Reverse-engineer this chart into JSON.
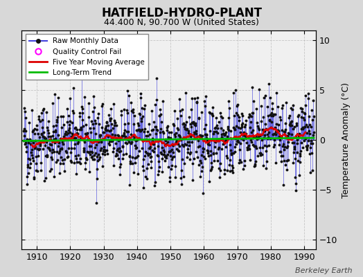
{
  "title": "HATFIELD-HYDRO-PLANT",
  "subtitle": "44.400 N, 90.700 W (United States)",
  "ylabel": "Temperature Anomaly (°C)",
  "watermark": "Berkeley Earth",
  "year_start": 1906,
  "year_end": 1993,
  "ylim": [
    -11,
    11
  ],
  "yticks": [
    -10,
    -5,
    0,
    5,
    10
  ],
  "xticks": [
    1910,
    1920,
    1930,
    1940,
    1950,
    1960,
    1970,
    1980,
    1990
  ],
  "bg_color": "#d8d8d8",
  "plot_bg_color": "#f0f0f0",
  "raw_line_color": "#4444dd",
  "raw_fill_color": "#8888ee",
  "raw_marker_color": "#111111",
  "moving_avg_color": "#dd0000",
  "trend_color": "#00bb00",
  "legend_raw": "Raw Monthly Data",
  "legend_qc": "Quality Control Fail",
  "legend_ma": "Five Year Moving Average",
  "legend_trend": "Long-Term Trend",
  "seed": 42
}
